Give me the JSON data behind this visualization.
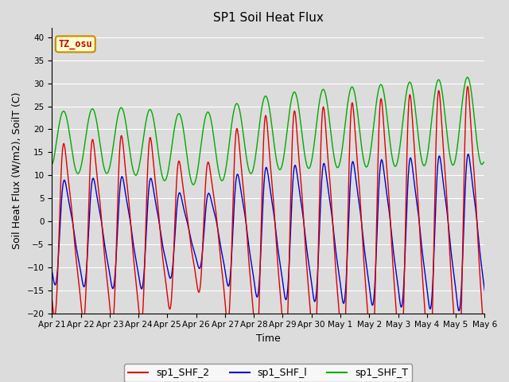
{
  "title": "SP1 Soil Heat Flux",
  "xlabel": "Time",
  "ylabel": "Soil Heat Flux (W/m2), SoilT (C)",
  "ylim": [
    -20,
    42
  ],
  "yticks": [
    -20,
    -15,
    -10,
    -5,
    0,
    5,
    10,
    15,
    20,
    25,
    30,
    35,
    40
  ],
  "xtick_labels": [
    "Apr 21",
    "Apr 22",
    "Apr 23",
    "Apr 24",
    "Apr 25",
    "Apr 26",
    "Apr 27",
    "Apr 28",
    "Apr 29",
    "Apr 30",
    "May 1",
    "May 2",
    "May 3",
    "May 4",
    "May 5",
    "May 6"
  ],
  "legend_labels": [
    "sp1_SHF_2",
    "sp1_SHF_l",
    "sp1_SHF_T"
  ],
  "legend_colors": [
    "#dd0000",
    "#0000cc",
    "#00aa00"
  ],
  "bg_color": "#dcdcdc",
  "grid_color": "#ffffff",
  "annotation_text": "TZ_osu",
  "annotation_bg": "#ffffcc",
  "annotation_border": "#cc8800",
  "fig_bg": "#dcdcdc"
}
